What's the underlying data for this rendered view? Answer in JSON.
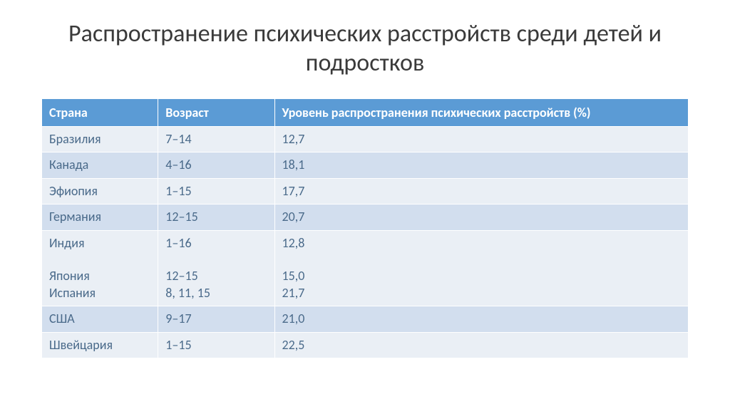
{
  "title": "Распространение психических расстройств среди детей и подростков",
  "table": {
    "type": "table",
    "header_bg": "#5b9bd5",
    "header_fg": "#ffffff",
    "row_colors": [
      "#eaeff5",
      "#d2deee"
    ],
    "cell_fg": "#4a6a8a",
    "title_fontsize": 34,
    "cell_fontsize": 18,
    "columns": [
      {
        "key": "country",
        "label": "Страна",
        "width_pct": 18
      },
      {
        "key": "age",
        "label": "Возраст",
        "width_pct": 18
      },
      {
        "key": "rate",
        "label": "Уровень распространения психических расстройств (%)",
        "width_pct": 64
      }
    ],
    "rows": [
      {
        "country": "Бразилия",
        "age": "7–14",
        "rate": "12,7"
      },
      {
        "country": "Канада",
        "age": "4–16",
        "rate": "18,1"
      },
      {
        "country": "Эфиопия",
        "age": "1–15",
        "rate": "17,7"
      },
      {
        "country": "Германия",
        "age": "12–15",
        "rate": "20,7"
      },
      {
        "country": "Индия\n\nЯпония\nИспания",
        "age": "1–16\n\n12–15\n8, 11, 15",
        "rate": "12,8\n\n15,0\n21,7"
      },
      {
        "country": "США",
        "age": "9–17",
        "rate": "21,0"
      },
      {
        "country": "Швейцария",
        "age": "1–15",
        "rate": "22,5"
      }
    ]
  }
}
